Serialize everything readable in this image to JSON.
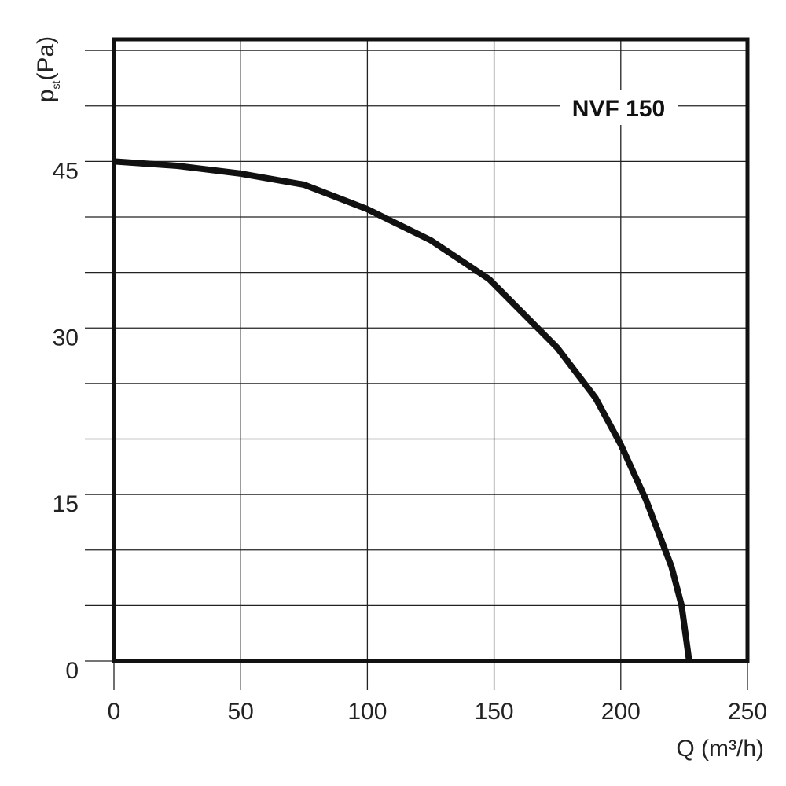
{
  "chart_data": {
    "type": "line",
    "title": "",
    "annotation": "NVF 150",
    "xlabel": "Q (m³/h)",
    "ylabel": {
      "main": "p",
      "sub": "st",
      "unit": "(Pa)"
    },
    "xlim": [
      0,
      250
    ],
    "ylim": [
      0,
      56
    ],
    "xticks": [
      0,
      50,
      100,
      150,
      200,
      250
    ],
    "xtick_labels": [
      "0",
      "50",
      "100",
      "150",
      "200",
      "250"
    ],
    "yticks": [
      0,
      15,
      30,
      45
    ],
    "ytick_labels": [
      "0",
      "15",
      "30",
      "45"
    ],
    "grid": true,
    "y_gridlines": [
      0,
      5,
      10,
      15,
      20,
      25,
      30,
      35,
      40,
      45,
      50,
      55
    ],
    "x_gridlines": [
      0,
      50,
      100,
      150,
      200,
      250
    ],
    "series": [
      {
        "x": [
          0,
          25,
          50,
          75,
          100,
          125,
          148,
          175,
          190,
          200,
          210,
          220,
          224,
          227
        ],
        "y": [
          45,
          44.6,
          43.9,
          42.9,
          40.7,
          37.9,
          34.4,
          28.2,
          23.7,
          19.5,
          14.5,
          8.5,
          5.0,
          0
        ]
      }
    ],
    "line_color": "#111111",
    "grid_color": "#222222",
    "frame_color": "#111111"
  }
}
